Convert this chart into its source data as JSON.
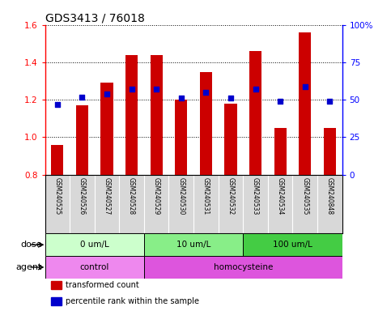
{
  "title": "GDS3413 / 76018",
  "samples": [
    "GSM240525",
    "GSM240526",
    "GSM240527",
    "GSM240528",
    "GSM240529",
    "GSM240530",
    "GSM240531",
    "GSM240532",
    "GSM240533",
    "GSM240534",
    "GSM240535",
    "GSM240848"
  ],
  "bar_values": [
    0.96,
    1.17,
    1.29,
    1.44,
    1.44,
    1.2,
    1.35,
    1.18,
    1.46,
    1.05,
    1.56,
    1.05
  ],
  "dot_percentiles": [
    47,
    52,
    54,
    57,
    57,
    51,
    55,
    51,
    57,
    49,
    59,
    49
  ],
  "bar_color": "#cc0000",
  "dot_color": "#0000cc",
  "ylim_left": [
    0.8,
    1.6
  ],
  "ylim_right": [
    0,
    100
  ],
  "yticks_left": [
    0.8,
    1.0,
    1.2,
    1.4,
    1.6
  ],
  "ytick_labels_left": [
    "0.8",
    "1.0",
    "1.2",
    "1.4",
    "1.6"
  ],
  "yticks_right": [
    0,
    25,
    50,
    75,
    100
  ],
  "ytick_labels_right": [
    "0",
    "25",
    "50",
    "75",
    "100%"
  ],
  "dose_groups": [
    {
      "label": "0 um/L",
      "start": 0,
      "end": 4,
      "color": "#ccffcc"
    },
    {
      "label": "10 um/L",
      "start": 4,
      "end": 8,
      "color": "#88ee88"
    },
    {
      "label": "100 um/L",
      "start": 8,
      "end": 12,
      "color": "#44cc44"
    }
  ],
  "agent_groups": [
    {
      "label": "control",
      "start": 0,
      "end": 4,
      "color": "#ee88ee"
    },
    {
      "label": "homocysteine",
      "start": 4,
      "end": 12,
      "color": "#dd55dd"
    }
  ],
  "bar_base": 0.8,
  "bg_color": "#ffffff",
  "sample_bg": "#d8d8d8",
  "legend_items": [
    {
      "color": "#cc0000",
      "label": "transformed count"
    },
    {
      "color": "#0000cc",
      "label": "percentile rank within the sample"
    }
  ]
}
